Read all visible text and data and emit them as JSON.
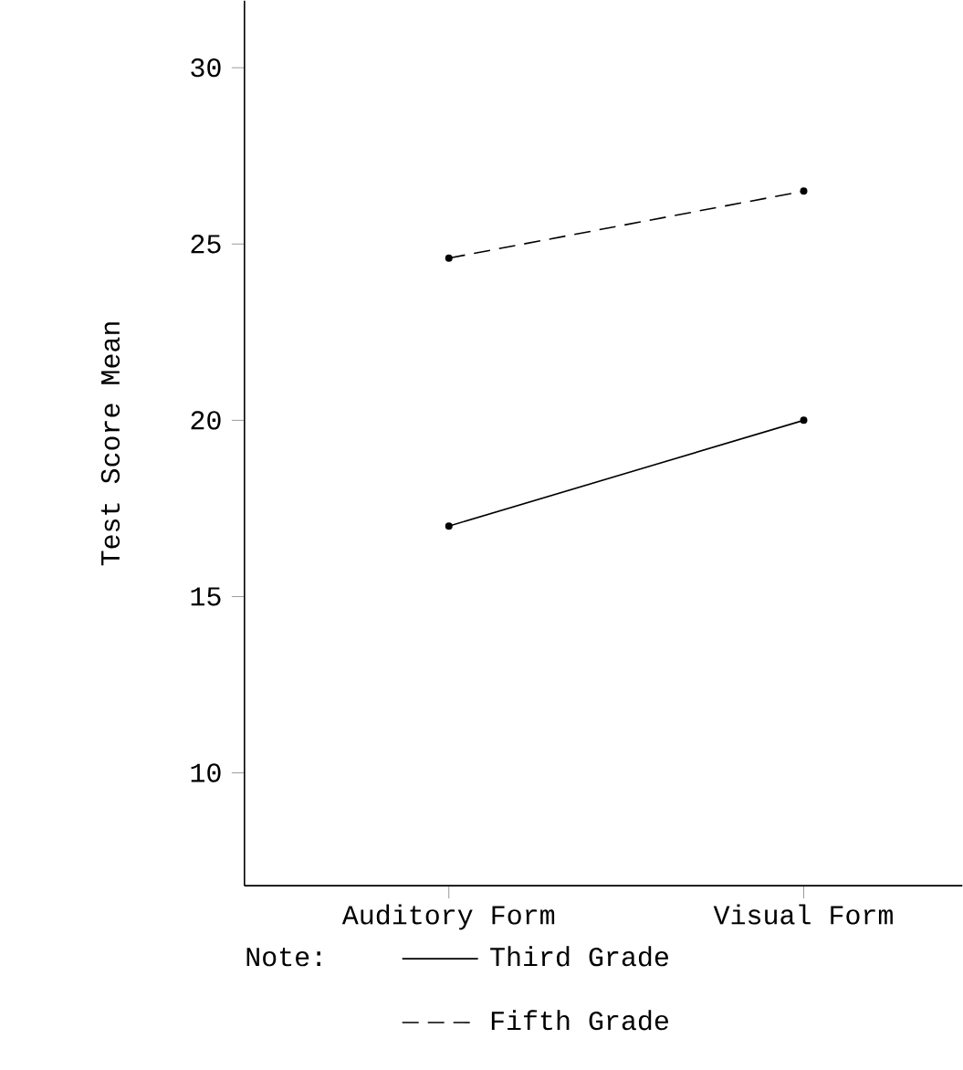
{
  "chart_data": {
    "type": "line",
    "ylabel": "Test Score Mean",
    "legend_title": "Note:",
    "categories": [
      "Auditory Form",
      "Visual Form"
    ],
    "series": [
      {
        "name": "Third Grade",
        "color": "#000000",
        "line_style": "solid",
        "values": [
          17.0,
          20.0
        ]
      },
      {
        "name": "Fifth Grade",
        "color": "#000000",
        "line_style": "dashed",
        "values": [
          24.6,
          26.5
        ]
      }
    ],
    "ylim": [
      6.8,
      31.9
    ],
    "yticks": [
      10,
      15,
      20,
      25,
      30
    ],
    "marker": "circle",
    "legend": "bottom",
    "grid": false
  }
}
